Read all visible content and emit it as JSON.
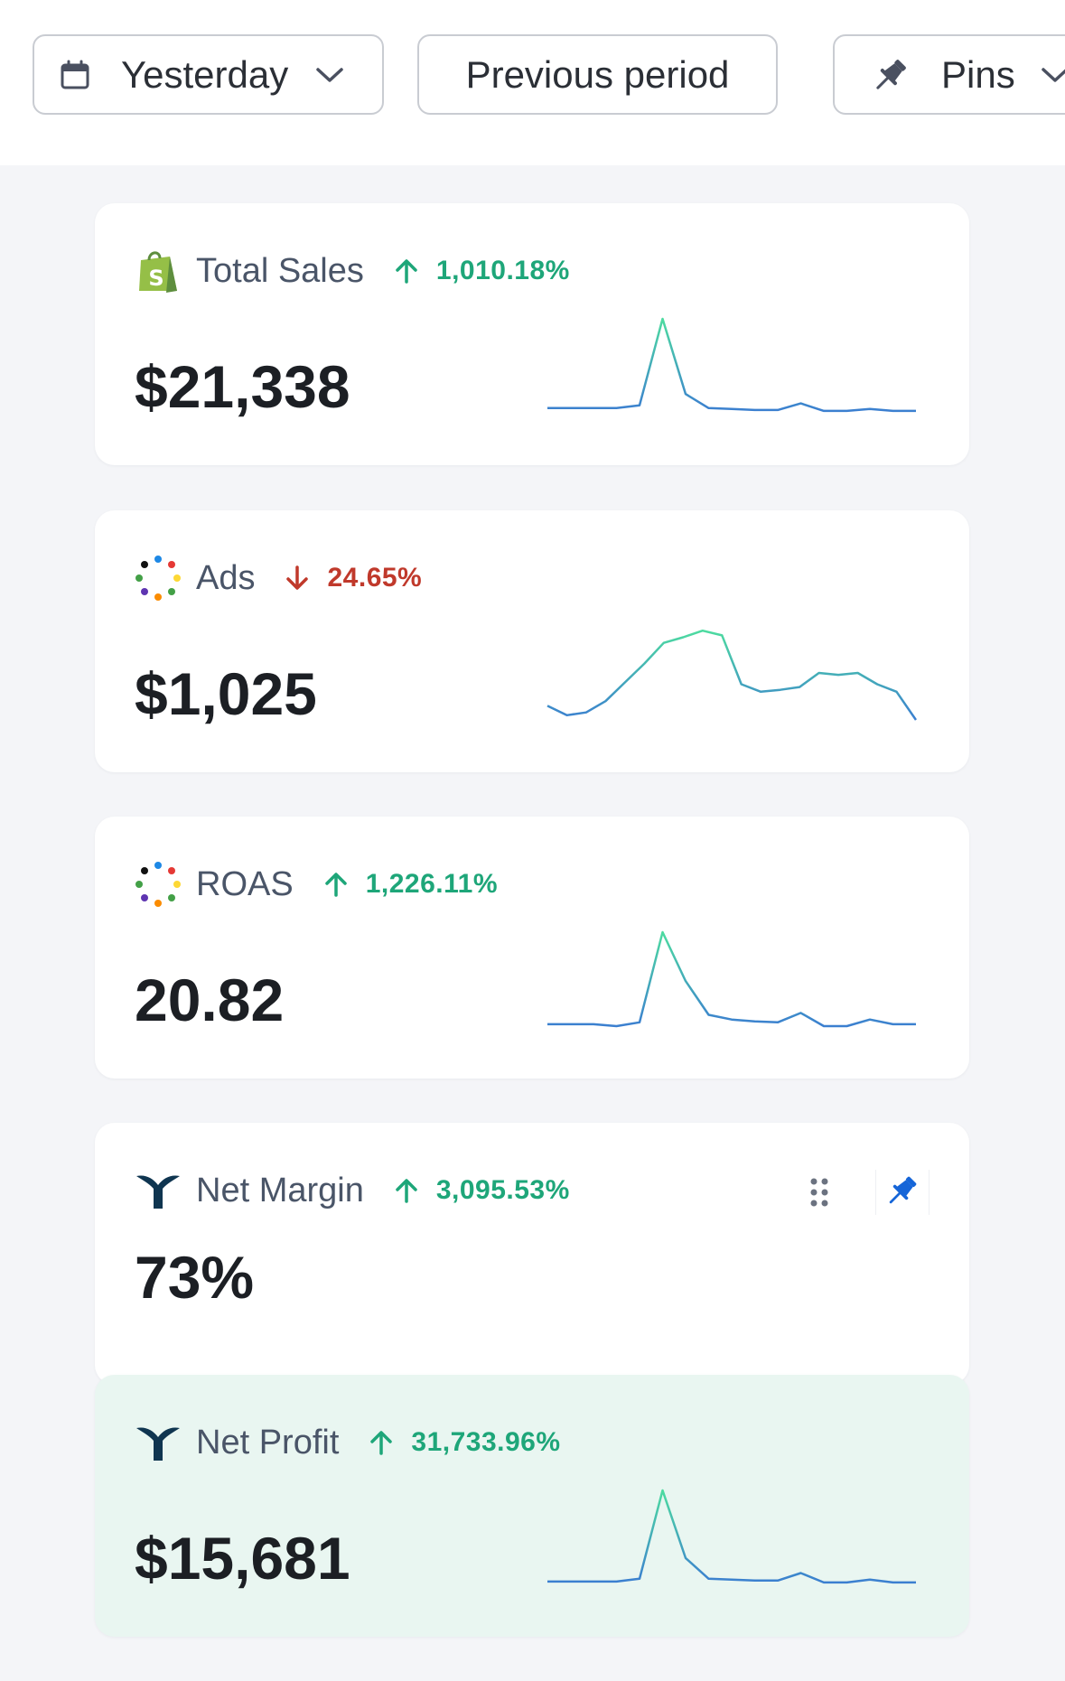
{
  "toolbar": {
    "date_filter": {
      "label": "Yesterday",
      "icon": "calendar-icon"
    },
    "compare_filter": {
      "label": "Previous period"
    },
    "pins_filter": {
      "label": "Pins",
      "icon": "pin-icon"
    }
  },
  "colors": {
    "up": "#1ea679",
    "down": "#c0392b",
    "spark_start": "#4ddba0",
    "spark_end": "#3b7fd0",
    "pin_blue": "#1565d8",
    "highlight_bg": "#e9f6f1"
  },
  "cards": [
    {
      "title": "Total Sales",
      "icon": "shopify-icon",
      "change": "1,010.18%",
      "direction": "up",
      "value": "$21,338",
      "sparkline": [
        0.05,
        0.05,
        0.05,
        0.05,
        0.08,
        1.0,
        0.2,
        0.05,
        0.04,
        0.03,
        0.03,
        0.1,
        0.02,
        0.02,
        0.04,
        0.02,
        0.02
      ]
    },
    {
      "title": "Ads",
      "icon": "ads-dots-icon",
      "change": "24.65%",
      "direction": "down",
      "value": "$1,025",
      "sparkline": [
        0.15,
        0.05,
        0.08,
        0.2,
        0.4,
        0.6,
        0.82,
        0.88,
        0.95,
        0.9,
        0.38,
        0.3,
        0.32,
        0.35,
        0.5,
        0.48,
        0.5,
        0.38,
        0.3,
        0.0
      ]
    },
    {
      "title": "ROAS",
      "icon": "ads-dots-icon",
      "change": "1,226.11%",
      "direction": "up",
      "value": "20.82",
      "sparkline": [
        0.02,
        0.02,
        0.02,
        0.0,
        0.04,
        1.0,
        0.48,
        0.12,
        0.07,
        0.05,
        0.04,
        0.14,
        0.0,
        0.0,
        0.07,
        0.02,
        0.02
      ]
    },
    {
      "title": "Net Margin",
      "icon": "triple-whale-icon",
      "change": "3,095.53%",
      "direction": "up",
      "value": "73%",
      "show_actions": true
    },
    {
      "title": "Net Profit",
      "icon": "triple-whale-icon",
      "change": "31,733.96%",
      "direction": "up",
      "value": "$15,681",
      "highlight": true,
      "sparkline": [
        0.03,
        0.03,
        0.03,
        0.03,
        0.06,
        1.0,
        0.28,
        0.06,
        0.05,
        0.04,
        0.04,
        0.12,
        0.02,
        0.02,
        0.05,
        0.02,
        0.02
      ]
    }
  ]
}
